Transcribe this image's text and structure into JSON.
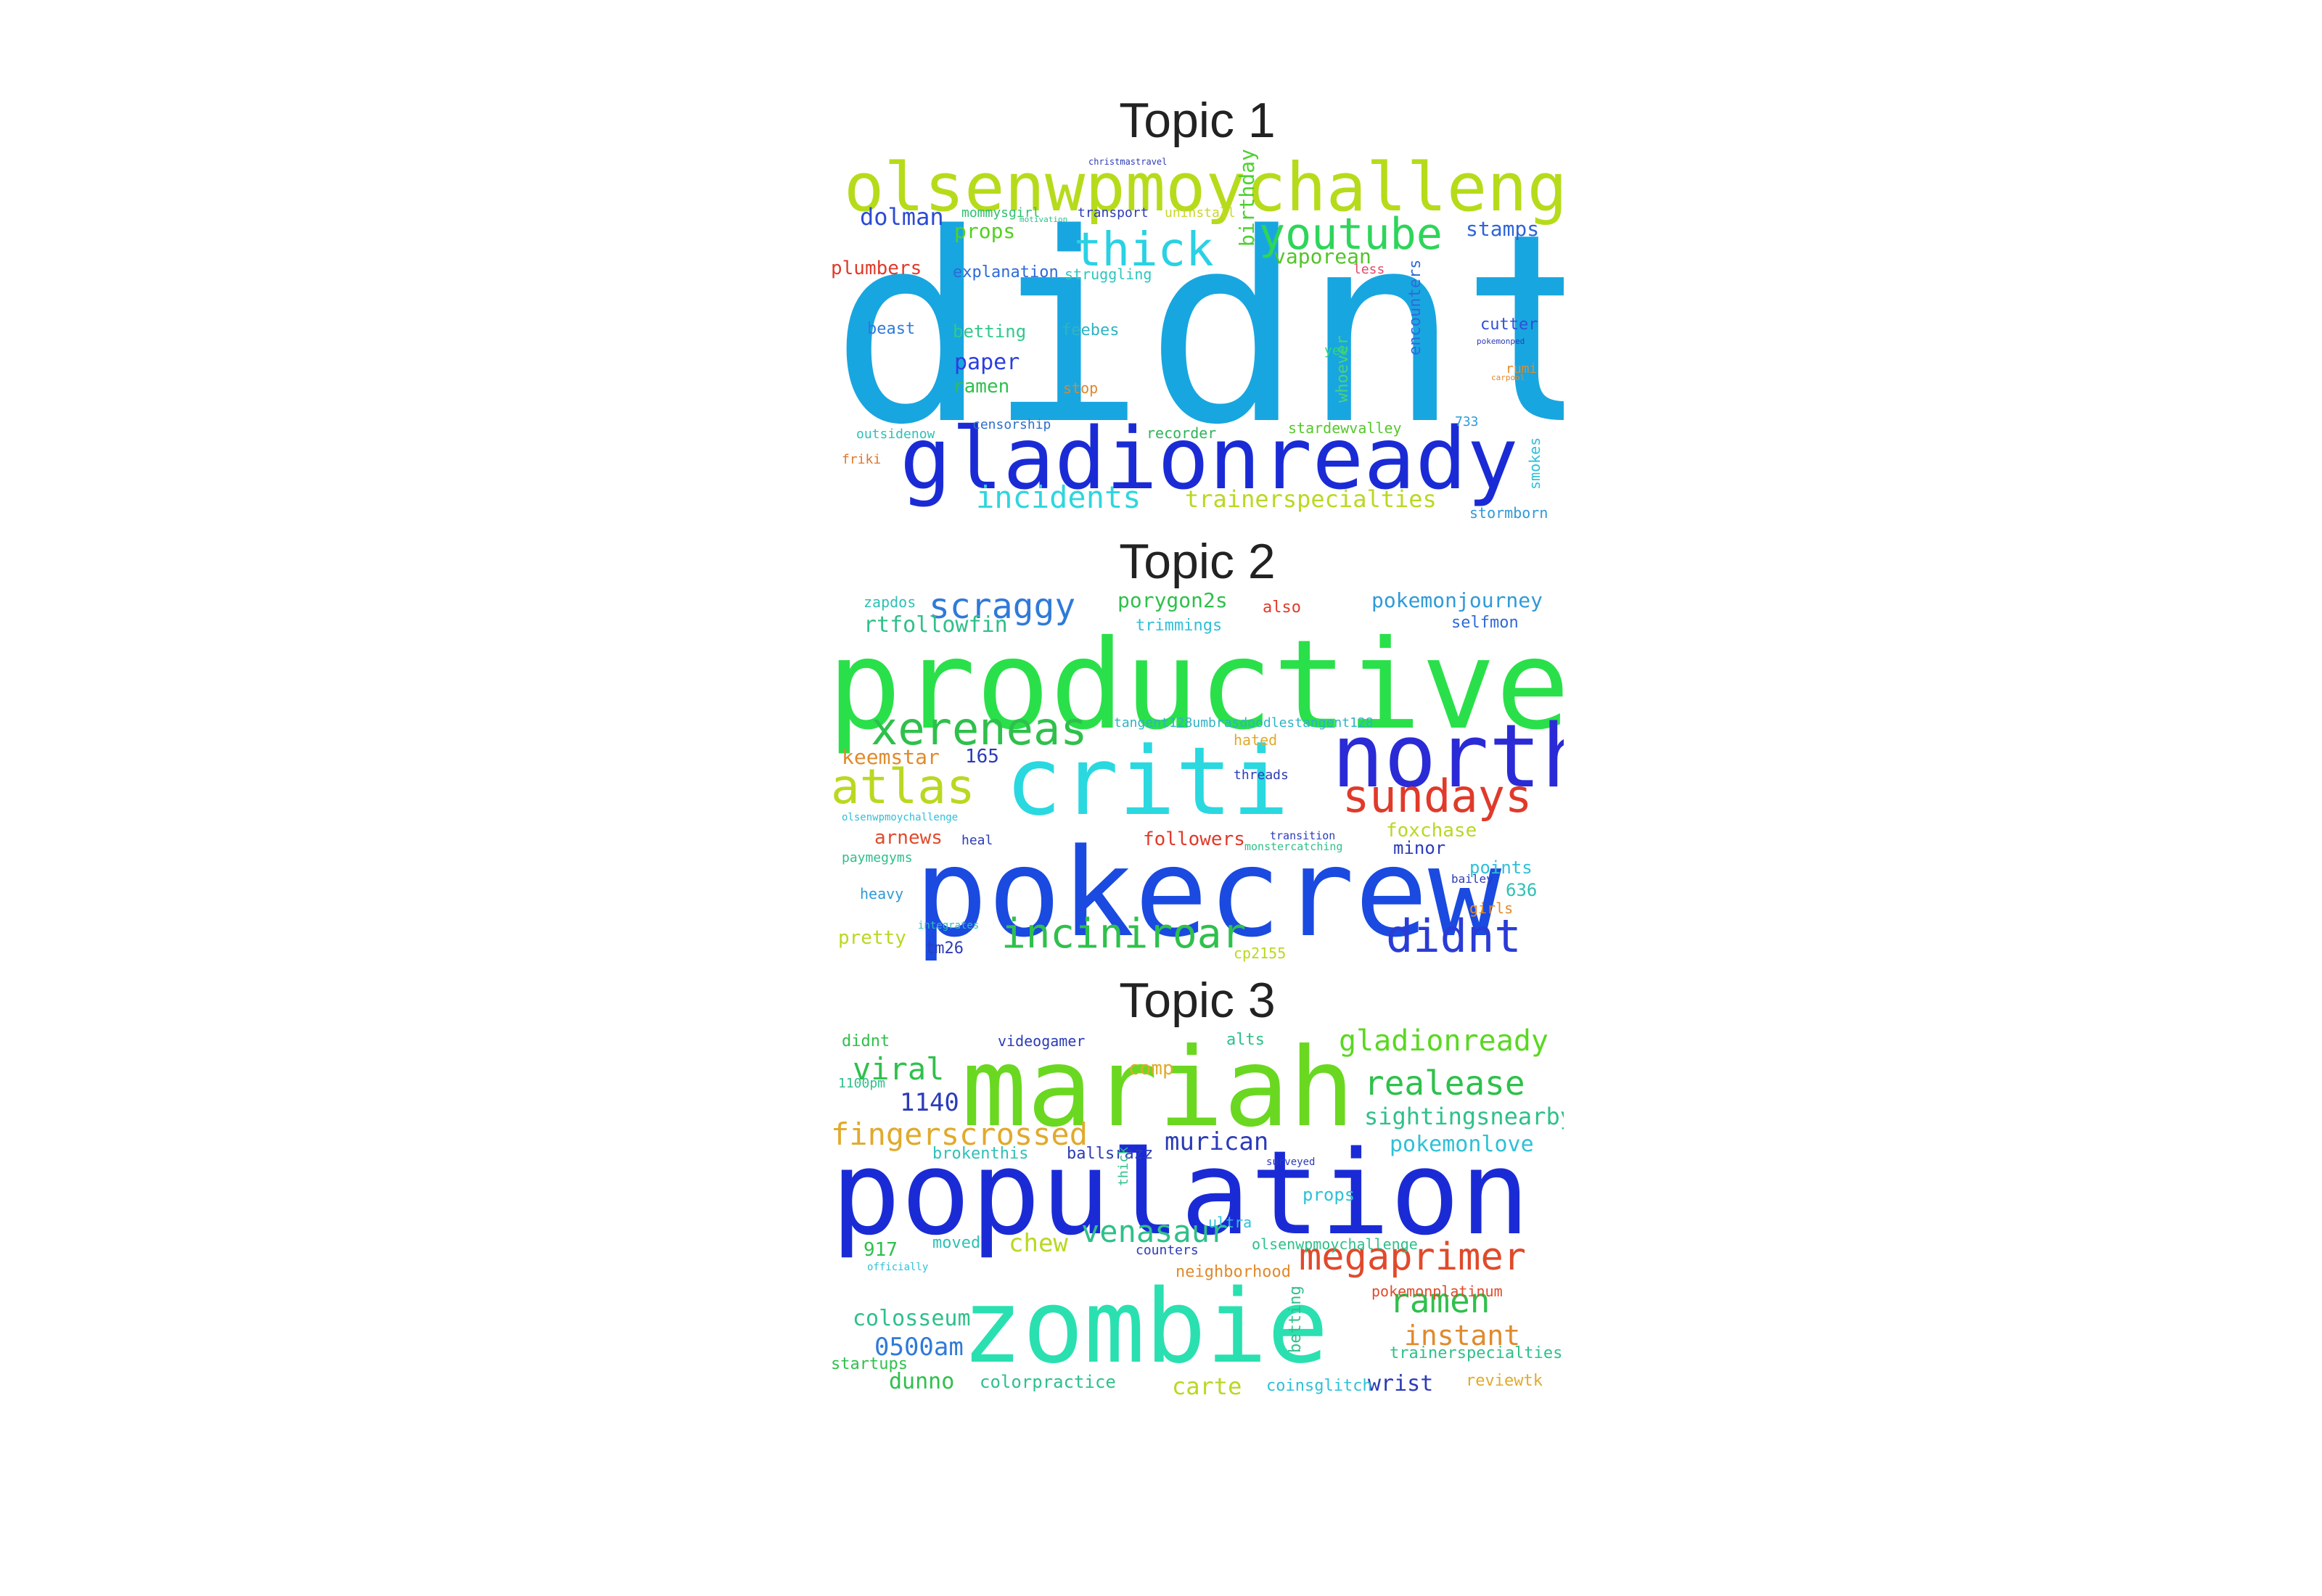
{
  "topics": [
    {
      "title": "Topic 1",
      "words": [
        {
          "text": "didnt",
          "color": "#18a6e0"
        },
        {
          "text": "olsenwpmoychallenge",
          "color": "#b6db1b"
        },
        {
          "text": "gladionready",
          "color": "#1a2bd6"
        },
        {
          "text": "youtube",
          "color": "#2ed55a"
        },
        {
          "text": "thick",
          "color": "#2ad1e4"
        },
        {
          "text": "incidents",
          "color": "#2fd6dd"
        },
        {
          "text": "trainerspecialties",
          "color": "#b9d821"
        },
        {
          "text": "dolman",
          "color": "#2c4bd3"
        },
        {
          "text": "stamps",
          "color": "#2f64d8"
        },
        {
          "text": "props",
          "color": "#52d11f"
        },
        {
          "text": "vaporean",
          "color": "#52c52a"
        },
        {
          "text": "plumbers",
          "color": "#e03a2a"
        },
        {
          "text": "explanation",
          "color": "#2c6bd8"
        },
        {
          "text": "struggling",
          "color": "#2ec6c0"
        },
        {
          "text": "paper",
          "color": "#2b3ee0"
        },
        {
          "text": "ramen",
          "color": "#2fc04c"
        },
        {
          "text": "betting",
          "color": "#2fc98c"
        },
        {
          "text": "feebes",
          "color": "#2fb3c4"
        },
        {
          "text": "beast",
          "color": "#2f7ad8"
        },
        {
          "text": "censorship",
          "color": "#2f6fc7"
        },
        {
          "text": "recorder",
          "color": "#2fb35a"
        },
        {
          "text": "stardewvalley",
          "color": "#56c72c"
        },
        {
          "text": "outsidenow",
          "color": "#2fc0b5"
        },
        {
          "text": "stormborn",
          "color": "#2f9ad8"
        },
        {
          "text": "cutter",
          "color": "#2f4fd8"
        },
        {
          "text": "birthdaygirl",
          "color": "#4cd12e"
        },
        {
          "text": "encounters",
          "color": "#2f6ad8"
        },
        {
          "text": "whoever",
          "color": "#4cd17a"
        },
        {
          "text": "smokes",
          "color": "#2fc0d8"
        },
        {
          "text": "friki",
          "color": "#e0772c"
        },
        {
          "text": "stop",
          "color": "#e0862c"
        },
        {
          "text": "mommysgirl",
          "color": "#2fc070"
        },
        {
          "text": "transport",
          "color": "#2c3bb8"
        },
        {
          "text": "uninstall",
          "color": "#c9d72c"
        },
        {
          "text": "yee",
          "color": "#2fd67a"
        },
        {
          "text": "less",
          "color": "#e04a6a"
        },
        {
          "text": "rumi",
          "color": "#e08a2c"
        },
        {
          "text": "733",
          "color": "#2f9ad8"
        },
        {
          "text": "christmastravel",
          "color": "#2c3bb8"
        },
        {
          "text": "motivation",
          "color": "#2fc08a"
        },
        {
          "text": "pokemonped",
          "color": "#2c3bb8"
        },
        {
          "text": "carpool",
          "color": "#e08a2c"
        }
      ]
    },
    {
      "title": "Topic 2",
      "words": [
        {
          "text": "productive",
          "color": "#2ae04a"
        },
        {
          "text": "criti",
          "color": "#2ad8e0"
        },
        {
          "text": "north",
          "color": "#2a2bd6"
        },
        {
          "text": "pokecrew",
          "color": "#1a4ae0"
        },
        {
          "text": "xereneas",
          "color": "#2fc04c"
        },
        {
          "text": "atlas",
          "color": "#b9d821"
        },
        {
          "text": "sundays",
          "color": "#e03a2a"
        },
        {
          "text": "inciniroar",
          "color": "#2fc04c"
        },
        {
          "text": "didnt",
          "color": "#2a3bd6"
        },
        {
          "text": "scraggy",
          "color": "#2f7ad8"
        },
        {
          "text": "porygon2s",
          "color": "#2fc04c"
        },
        {
          "text": "pokemonjourney",
          "color": "#2f9ad8"
        },
        {
          "text": "rtfollowfin",
          "color": "#2fc08a"
        },
        {
          "text": "trimmings",
          "color": "#2fc0d8"
        },
        {
          "text": "selfmon",
          "color": "#2f6ad8"
        },
        {
          "text": "zapdos",
          "color": "#2fc0b5"
        },
        {
          "text": "also",
          "color": "#e03a2a"
        },
        {
          "text": "tangent128umbrasdoodlestangent128",
          "color": "#2fb3c4"
        },
        {
          "text": "keemstar",
          "color": "#e08a2c"
        },
        {
          "text": "165",
          "color": "#2c3bb8"
        },
        {
          "text": "hated",
          "color": "#e0aa2c"
        },
        {
          "text": "threads",
          "color": "#2c3bb8"
        },
        {
          "text": "foxchase",
          "color": "#b9d821"
        },
        {
          "text": "arnews",
          "color": "#e04a2c"
        },
        {
          "text": "heal",
          "color": "#2c3bb8"
        },
        {
          "text": "followers",
          "color": "#e03a2a"
        },
        {
          "text": "minor",
          "color": "#2c3bb8"
        },
        {
          "text": "points",
          "color": "#2fc0d8"
        },
        {
          "text": "636",
          "color": "#2fc0b5"
        },
        {
          "text": "paymegyms",
          "color": "#2fc08a"
        },
        {
          "text": "heavy",
          "color": "#2f9ad8"
        },
        {
          "text": "pretty",
          "color": "#b9d821"
        },
        {
          "text": "tm26",
          "color": "#2c3bb8"
        },
        {
          "text": "girls",
          "color": "#e08a2c"
        },
        {
          "text": "bailey",
          "color": "#2c3bb8"
        },
        {
          "text": "monstercatching",
          "color": "#2fc08a"
        },
        {
          "text": "transition",
          "color": "#2c3bb8"
        },
        {
          "text": "integrates",
          "color": "#2fc0b5"
        },
        {
          "text": "cp2155",
          "color": "#b9d821"
        },
        {
          "text": "olsenwpmoychallenge",
          "color": "#2fc0d8"
        }
      ]
    },
    {
      "title": "Topic 3",
      "words": [
        {
          "text": "mariah",
          "color": "#6ad821"
        },
        {
          "text": "population",
          "color": "#1a2bd6"
        },
        {
          "text": "zombie",
          "color": "#2ae0b0"
        },
        {
          "text": "gladionready",
          "color": "#5ad821"
        },
        {
          "text": "realease",
          "color": "#2fc04c"
        },
        {
          "text": "viral",
          "color": "#2fc04c"
        },
        {
          "text": "1140",
          "color": "#2c3bb8"
        },
        {
          "text": "fingerscrossed",
          "color": "#e0aa2c"
        },
        {
          "text": "sightingsnearby",
          "color": "#2fc08a"
        },
        {
          "text": "pokemonlove",
          "color": "#2fc0d8"
        },
        {
          "text": "murican",
          "color": "#2c3bb8"
        },
        {
          "text": "venasaur",
          "color": "#2fc08a"
        },
        {
          "text": "megaprimer",
          "color": "#e04a2c"
        },
        {
          "text": "ramen",
          "color": "#2fc04c"
        },
        {
          "text": "instant",
          "color": "#e08a2c"
        },
        {
          "text": "colosseum",
          "color": "#2fc08a"
        },
        {
          "text": "0500am",
          "color": "#2f7ad8"
        },
        {
          "text": "dunno",
          "color": "#2fc04c"
        },
        {
          "text": "colorpractice",
          "color": "#2fc08a"
        },
        {
          "text": "carte",
          "color": "#b9d821"
        },
        {
          "text": "wrist",
          "color": "#2c3bb8"
        },
        {
          "text": "reviewtk",
          "color": "#e0aa2c"
        },
        {
          "text": "chew",
          "color": "#b9d821"
        },
        {
          "text": "videogamer",
          "color": "#2c3bb8"
        },
        {
          "text": "didnt",
          "color": "#2fc04c"
        },
        {
          "text": "alts",
          "color": "#2fc08a"
        },
        {
          "text": "comp",
          "color": "#e0aa2c"
        },
        {
          "text": "props",
          "color": "#2fc0d8"
        },
        {
          "text": "olsenwpmoychallenge",
          "color": "#2fc08a"
        },
        {
          "text": "neighborhood",
          "color": "#e08a2c"
        },
        {
          "text": "pokemonplatinum",
          "color": "#e04a2c"
        },
        {
          "text": "trainerspecialties",
          "color": "#2fc08a"
        },
        {
          "text": "startups",
          "color": "#2fc04c"
        },
        {
          "text": "coinsglitch",
          "color": "#2fc0d8"
        },
        {
          "text": "917",
          "color": "#2fc04c"
        },
        {
          "text": "moved",
          "color": "#2fc0b5"
        },
        {
          "text": "1100pm",
          "color": "#2fc08a"
        },
        {
          "text": "brokenthis",
          "color": "#2fc0b5"
        },
        {
          "text": "ballsrazz",
          "color": "#2c3bb8"
        },
        {
          "text": "betting",
          "color": "#2fc08a"
        },
        {
          "text": "ultra",
          "color": "#2fc0d8"
        },
        {
          "text": "counters",
          "color": "#2c3bb8"
        },
        {
          "text": "thick",
          "color": "#2fc08a"
        },
        {
          "text": "surveyed",
          "color": "#2c3bb8"
        },
        {
          "text": "officially",
          "color": "#2fc0d8"
        }
      ]
    }
  ]
}
